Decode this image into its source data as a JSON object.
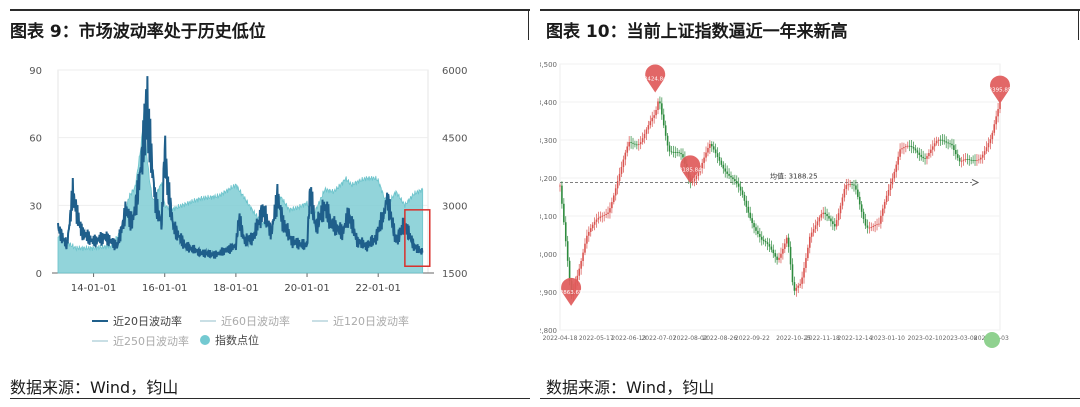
{
  "left": {
    "title": "图表 9：市场波动率处于历史低位",
    "source": "数据来源：Wind，钧山",
    "legend": [
      {
        "label": "近20日波动率",
        "color": "#1f5f8b",
        "kind": "line"
      },
      {
        "label": "近60日波动率",
        "color": "#c9dfe5",
        "kind": "line"
      },
      {
        "label": "近120日波动率",
        "color": "#c9dfe5",
        "kind": "line"
      },
      {
        "label": "近250日波动率",
        "color": "#c9dfe5",
        "kind": "line"
      },
      {
        "label": "指数点位",
        "color": "#73c9d1",
        "kind": "dot"
      }
    ]
  },
  "right": {
    "title": "图表 10：当前上证指数逼近一年来新高",
    "source": "数据来源：Wind，钧山",
    "avg_label": "均值: 3188.25",
    "markers": [
      "2863.65",
      "3424.84",
      "3185.84",
      "3395.85"
    ]
  },
  "colors": {
    "area": "#7fcdd4",
    "vol": "#1f5f8b",
    "up": "#d9534f",
    "down": "#2e8b3e",
    "highlight": "#d9302c"
  },
  "chart_data": [
    {
      "type": "area",
      "title": "图表 9：市场波动率处于历史低位",
      "x_ticks": [
        "14-01-01",
        "16-01-01",
        "18-01-01",
        "20-01-01",
        "22-01-01"
      ],
      "y_left_ticks": [
        0,
        30,
        60,
        90
      ],
      "y_right_ticks": [
        1500,
        3000,
        4500,
        6000
      ],
      "ylim_left": [
        0,
        90
      ],
      "ylim_right": [
        1500,
        6000
      ],
      "series": [
        {
          "name": "指数点位",
          "axis": "right",
          "x": [
            "2013-01",
            "2013-07",
            "2014-01",
            "2014-07",
            "2014-10",
            "2015-01",
            "2015-03",
            "2015-05",
            "2015-06",
            "2015-07",
            "2015-08",
            "2015-09",
            "2015-12",
            "2016-01",
            "2016-03",
            "2016-07",
            "2017-01",
            "2017-07",
            "2018-01",
            "2018-04",
            "2018-07",
            "2018-10",
            "2019-01",
            "2019-04",
            "2019-07",
            "2019-10",
            "2020-01",
            "2020-03",
            "2020-07",
            "2020-10",
            "2021-01",
            "2021-02",
            "2021-04",
            "2021-07",
            "2021-09",
            "2021-12",
            "2022-01",
            "2022-04",
            "2022-07",
            "2022-10",
            "2023-01",
            "2023-04"
          ],
          "values": [
            2300,
            2050,
            2050,
            2100,
            2400,
            3200,
            3400,
            4300,
            5100,
            4100,
            3500,
            3100,
            3500,
            3000,
            2900,
            3000,
            3150,
            3200,
            3450,
            3150,
            2850,
            2600,
            2550,
            3200,
            2900,
            2950,
            3050,
            2750,
            3350,
            3300,
            3500,
            3600,
            3450,
            3550,
            3600,
            3600,
            3550,
            3000,
            3300,
            3000,
            3250,
            3350
          ]
        },
        {
          "name": "近20日波动率",
          "axis": "left",
          "x": [
            "2013-01",
            "2013-04",
            "2013-06",
            "2013-09",
            "2014-01",
            "2014-05",
            "2014-09",
            "2014-12",
            "2015-02",
            "2015-04",
            "2015-06",
            "2015-07",
            "2015-08",
            "2015-10",
            "2015-12",
            "2016-01",
            "2016-02",
            "2016-04",
            "2016-08",
            "2017-01",
            "2017-06",
            "2018-01",
            "2018-02",
            "2018-04",
            "2018-07",
            "2018-10",
            "2019-01",
            "2019-03",
            "2019-05",
            "2019-08",
            "2020-01",
            "2020-02",
            "2020-04",
            "2020-07",
            "2020-09",
            "2021-01",
            "2021-03",
            "2021-06",
            "2021-09",
            "2021-12",
            "2022-03",
            "2022-04",
            "2022-07",
            "2022-10",
            "2023-01",
            "2023-04"
          ],
          "values": [
            20,
            12,
            35,
            18,
            14,
            16,
            12,
            28,
            22,
            36,
            60,
            74,
            58,
            30,
            22,
            55,
            38,
            20,
            12,
            9,
            8,
            12,
            24,
            14,
            16,
            28,
            18,
            34,
            22,
            14,
            12,
            36,
            20,
            30,
            22,
            18,
            26,
            14,
            12,
            15,
            26,
            34,
            14,
            22,
            12,
            9
          ]
        }
      ],
      "annotations": [
        "红框标注近期波动率低位"
      ]
    },
    {
      "type": "line",
      "title": "图表 10：当前上证指数逼近一年来新高",
      "y_ticks": [
        2800,
        2900,
        3000,
        3100,
        3200,
        3300,
        3400,
        3500
      ],
      "ylim": [
        2800,
        3500
      ],
      "x_ticks": [
        "2022-04-18",
        "2022-05-17",
        "2022-06-13",
        "2022-07-07",
        "2022-08-02",
        "2022-08-26",
        "2022-09-22",
        "2022-10-25",
        "2022-11-18",
        "2022-12-14",
        "2023-01-10",
        "2023-02-10",
        "2023-03-08",
        "2023-04-03"
      ],
      "series": [
        {
          "name": "上证指数",
          "x": [
            "2022-04-18",
            "2022-04-27",
            "2022-05-09",
            "2022-05-17",
            "2022-05-27",
            "2022-06-07",
            "2022-06-13",
            "2022-06-22",
            "2022-07-04",
            "2022-07-07",
            "2022-07-15",
            "2022-07-26",
            "2022-08-02",
            "2022-08-10",
            "2022-08-18",
            "2022-08-26",
            "2022-09-05",
            "2022-09-14",
            "2022-09-22",
            "2022-09-30",
            "2022-10-12",
            "2022-10-20",
            "2022-10-25",
            "2022-10-31",
            "2022-11-08",
            "2022-11-18",
            "2022-11-28",
            "2022-12-06",
            "2022-12-14",
            "2022-12-23",
            "2023-01-03",
            "2023-01-10",
            "2023-01-20",
            "2023-02-03",
            "2023-02-10",
            "2023-02-20",
            "2023-03-01",
            "2023-03-08",
            "2023-03-16",
            "2023-03-24",
            "2023-04-03",
            "2023-04-10"
          ],
          "values": [
            3180,
            2880,
            3050,
            3080,
            3120,
            3220,
            3290,
            3300,
            3360,
            3410,
            3280,
            3250,
            3190,
            3230,
            3280,
            3250,
            3200,
            3150,
            3090,
            3030,
            2990,
            3050,
            2890,
            2920,
            3060,
            3100,
            3080,
            3180,
            3170,
            3080,
            3070,
            3160,
            3280,
            3270,
            3260,
            3290,
            3300,
            3240,
            3240,
            3260,
            3300,
            3395
          ]
        }
      ],
      "mean": 3188.25,
      "markers": [
        {
          "label": "2863.65",
          "x": "2022-04-27",
          "y": 2863.65
        },
        {
          "label": "3424.84",
          "x": "2022-07-04",
          "y": 3424.84
        },
        {
          "label": "3185.84",
          "x": "2022-08-02",
          "y": 3185.84
        },
        {
          "label": "3395.85",
          "x": "2023-04-10",
          "y": 3395.85
        }
      ]
    }
  ]
}
